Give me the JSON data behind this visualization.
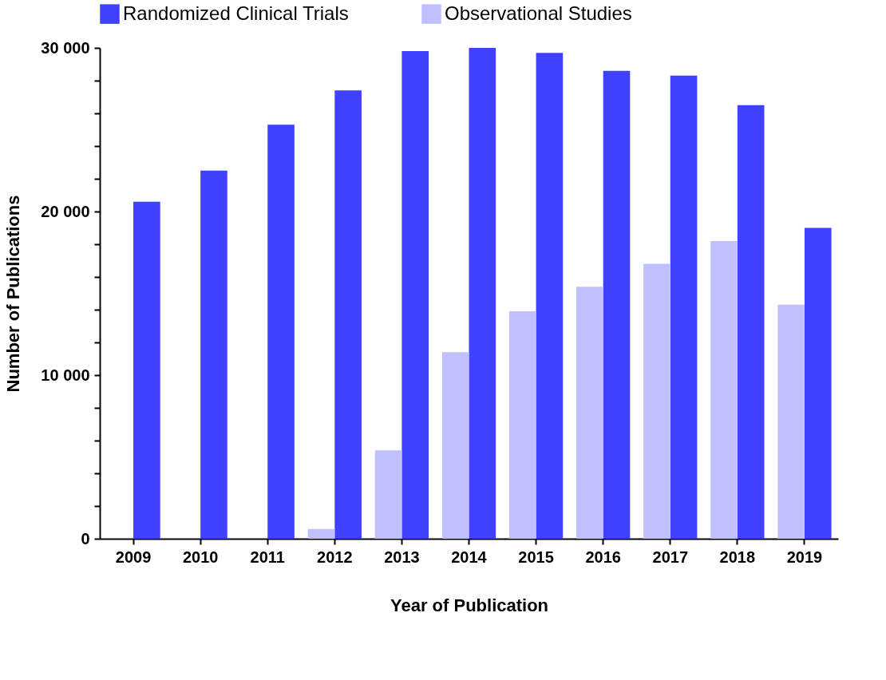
{
  "chart_data": {
    "type": "bar",
    "xlabel": "Year of Publication",
    "ylabel": "Number of Publications",
    "categories": [
      "2009",
      "2010",
      "2011",
      "2012",
      "2013",
      "2014",
      "2015",
      "2016",
      "2017",
      "2018",
      "2019"
    ],
    "series": [
      {
        "name": "Randomized Clinical Trials",
        "color": "#4040ff",
        "values": [
          20600,
          22500,
          25300,
          27400,
          29800,
          30000,
          29700,
          28600,
          28300,
          26500,
          19000
        ]
      },
      {
        "name": "Observational Studies",
        "color": "#c0c0ff",
        "values": [
          null,
          null,
          null,
          600,
          5400,
          11400,
          13900,
          15400,
          16800,
          18200,
          14300
        ]
      }
    ],
    "ylim": [
      0,
      30000
    ],
    "yticks": [
      {
        "value": 0,
        "label": "0"
      },
      {
        "value": 2000,
        "label": null
      },
      {
        "value": 4000,
        "label": null
      },
      {
        "value": 6000,
        "label": null
      },
      {
        "value": 8000,
        "label": null
      },
      {
        "value": 10000,
        "label": "10 000"
      },
      {
        "value": 12000,
        "label": null
      },
      {
        "value": 14000,
        "label": null
      },
      {
        "value": 16000,
        "label": null
      },
      {
        "value": 18000,
        "label": null
      },
      {
        "value": 20000,
        "label": "20 000"
      },
      {
        "value": 22000,
        "label": null
      },
      {
        "value": 24000,
        "label": null
      },
      {
        "value": 26000,
        "label": null
      },
      {
        "value": 28000,
        "label": null
      },
      {
        "value": 30000,
        "label": "30 000"
      }
    ],
    "grid": false,
    "legend": "top"
  }
}
